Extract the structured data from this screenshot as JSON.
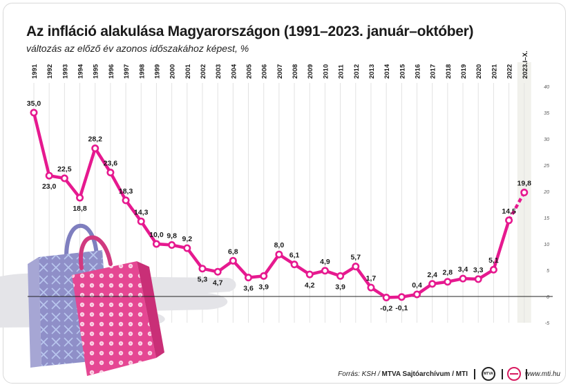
{
  "title": "Az infláció alakulása Magyarországon (1991–2023. január–október)",
  "subtitle": "változás az előző év azonos időszakához képest, %",
  "footer": {
    "source_prefix": "Forrás: KSH / ",
    "source_bold": "MTVA Sajtóarchívum / MTI",
    "site": "www.mti.hu"
  },
  "colors": {
    "line": "#e6198f",
    "grid": "#e2e2e2",
    "highlight_column": "#f1f1ec",
    "bag_pink": "#e54793",
    "bag_lavender": "#8f8fc8",
    "cloud": "#e4e4e8"
  },
  "icons": [
    "shopping-bag-pink-icon",
    "shopping-bag-lavender-icon",
    "mtva-logo-icon",
    "mti-logo-icon"
  ],
  "chart_data": {
    "type": "line",
    "categories": [
      "1991",
      "1992",
      "1993",
      "1994",
      "1995",
      "1996",
      "1997",
      "1998",
      "1999",
      "2000",
      "2001",
      "2002",
      "2003",
      "2004",
      "2005",
      "2006",
      "2007",
      "2008",
      "2009",
      "2010",
      "2011",
      "2012",
      "2013",
      "2014",
      "2015",
      "2016",
      "2017",
      "2018",
      "2019",
      "2020",
      "2021",
      "2022",
      "2023.I–X."
    ],
    "values": [
      35.0,
      23.0,
      22.5,
      18.8,
      28.2,
      23.6,
      18.3,
      14.3,
      10.0,
      9.8,
      9.2,
      5.3,
      4.7,
      6.8,
      3.6,
      3.9,
      8.0,
      6.1,
      4.2,
      4.9,
      3.9,
      5.7,
      1.7,
      -0.2,
      -0.1,
      0.4,
      2.4,
      2.8,
      3.4,
      3.3,
      5.1,
      14.5,
      19.8
    ],
    "labels": [
      "35,0",
      "23,0",
      "22,5",
      "18,8",
      "28,2",
      "23,6",
      "18,3",
      "14,3",
      "10,0",
      "9,8",
      "9,2",
      "5,3",
      "4,7",
      "6,8",
      "3,6",
      "3,9",
      "8,0",
      "6,1",
      "4,2",
      "4,9",
      "3,9",
      "5,7",
      "1,7",
      "-0,2",
      "-0,1",
      "0,4",
      "2,4",
      "2,8",
      "3,4",
      "3,3",
      "5,1",
      "14,5",
      "19,8"
    ],
    "label_position": [
      "above",
      "below",
      "above",
      "below",
      "above",
      "above",
      "above",
      "above",
      "above",
      "above",
      "above",
      "below",
      "below",
      "above",
      "below",
      "below",
      "above",
      "above",
      "below",
      "above",
      "below",
      "above",
      "above",
      "below",
      "below",
      "above",
      "above",
      "above",
      "above",
      "above",
      "above",
      "above",
      "above"
    ],
    "dashed_last_segment": true,
    "highlighted_category": "2023.I–X.",
    "yticks": [
      -5,
      0,
      5,
      10,
      15,
      20,
      25,
      30,
      35,
      40
    ],
    "ylim": [
      -5,
      40
    ],
    "yaxis_side": "right",
    "grid": "vertical",
    "xlabel": "",
    "ylabel": ""
  }
}
